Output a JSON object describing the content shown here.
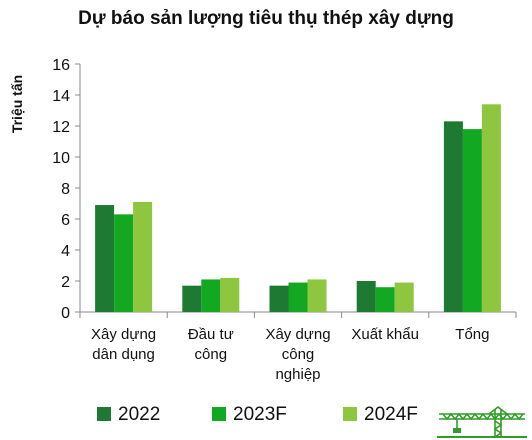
{
  "chart_data": {
    "type": "bar",
    "title": "Dự báo sản lượng tiêu thụ thép xây dựng",
    "ylabel": "Triệu tấn",
    "xlabel": "",
    "ylim": [
      0,
      16
    ],
    "yticks": [
      "0",
      "2",
      "4",
      "6",
      "8",
      "10",
      "12",
      "14",
      "16"
    ],
    "categories": [
      [
        "Xây dựng",
        "dân dụng"
      ],
      [
        "Đầu tư",
        "công"
      ],
      [
        "Xây dựng",
        "công",
        "nghiệp"
      ],
      [
        "Xuất khẩu"
      ],
      [
        "Tổng"
      ]
    ],
    "series": [
      {
        "name": "2022",
        "color": "#1e7a32",
        "values": [
          6.9,
          1.7,
          1.7,
          2.0,
          12.3
        ]
      },
      {
        "name": "2023F",
        "color": "#13a821",
        "values": [
          6.3,
          2.1,
          1.9,
          1.6,
          11.8
        ]
      },
      {
        "name": "2024F",
        "color": "#8ec63f",
        "values": [
          7.1,
          2.2,
          2.1,
          1.9,
          13.4
        ]
      }
    ],
    "grid": false,
    "legend_position": "bottom"
  },
  "logo": {
    "icon": "tower-crane-icon",
    "color": "#2f9d27"
  }
}
